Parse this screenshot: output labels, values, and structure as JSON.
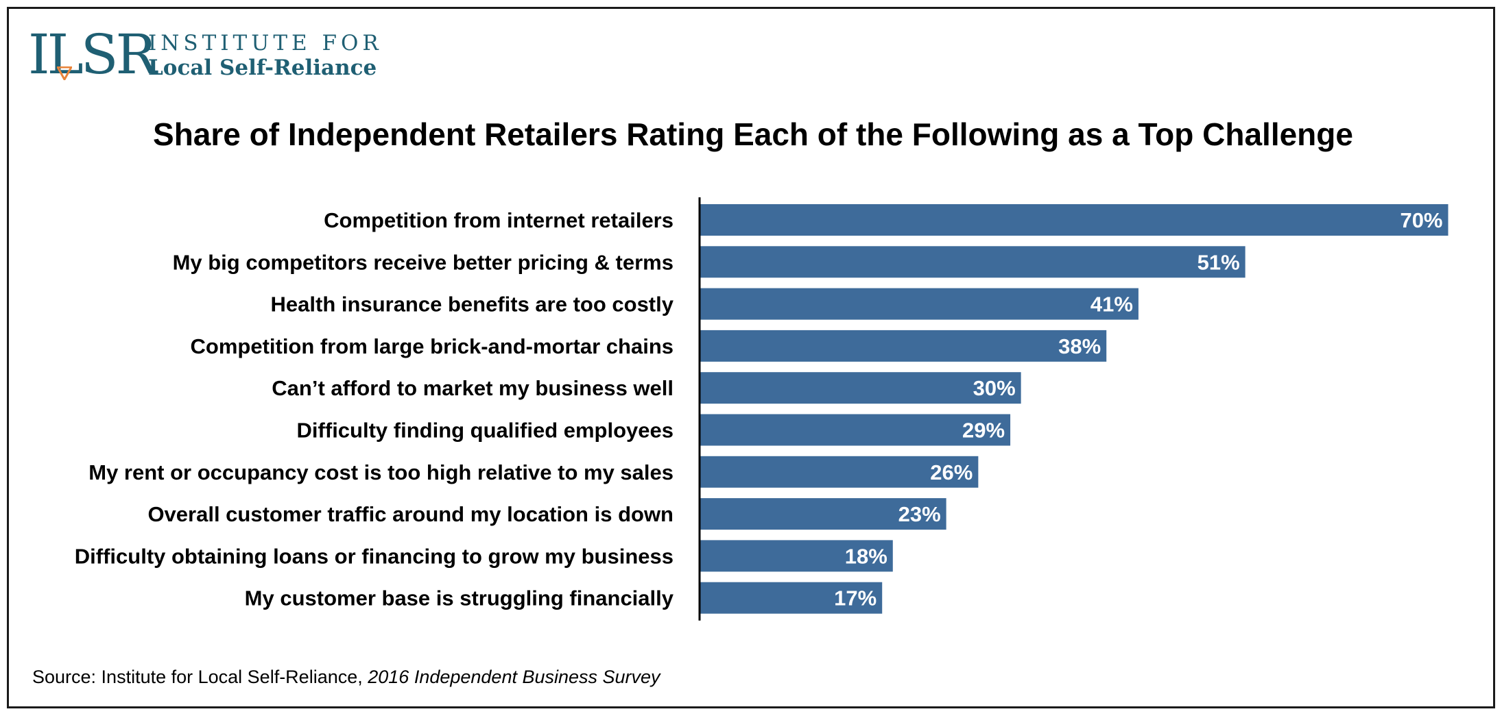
{
  "logo": {
    "mark": "ILSR",
    "line1": "INSTITUTE FOR",
    "line2": "Local Self-Reliance",
    "color": "#1f5f73",
    "accent": "#e8833a"
  },
  "chart_data": {
    "type": "bar",
    "orientation": "horizontal",
    "title": "Share of Independent Retailers Rating Each of the Following as a Top Challenge",
    "categories": [
      "Competition from internet retailers",
      "My big competitors receive better pricing & terms",
      "Health insurance benefits are too costly",
      "Competition from large brick-and-mortar chains",
      "Can’t afford to market my business well",
      "Difficulty finding qualified employees",
      "My rent or occupancy cost is too high relative to my sales",
      "Overall customer traffic around my location is down",
      "Difficulty obtaining loans or financing to grow my business",
      "My customer base is struggling financially"
    ],
    "values": [
      70,
      51,
      41,
      38,
      30,
      29,
      26,
      23,
      18,
      17
    ],
    "data_labels": [
      "70%",
      "51%",
      "41%",
      "38%",
      "30%",
      "29%",
      "26%",
      "23%",
      "18%",
      "17%"
    ],
    "xlim": [
      0,
      70
    ],
    "unit": "%",
    "bar_color": "#3e6b9a",
    "grid": false,
    "legend": "none"
  },
  "source": {
    "prefix": "Source: Institute for Local Self-Reliance, ",
    "publication": "2016 Independent Business Survey"
  }
}
